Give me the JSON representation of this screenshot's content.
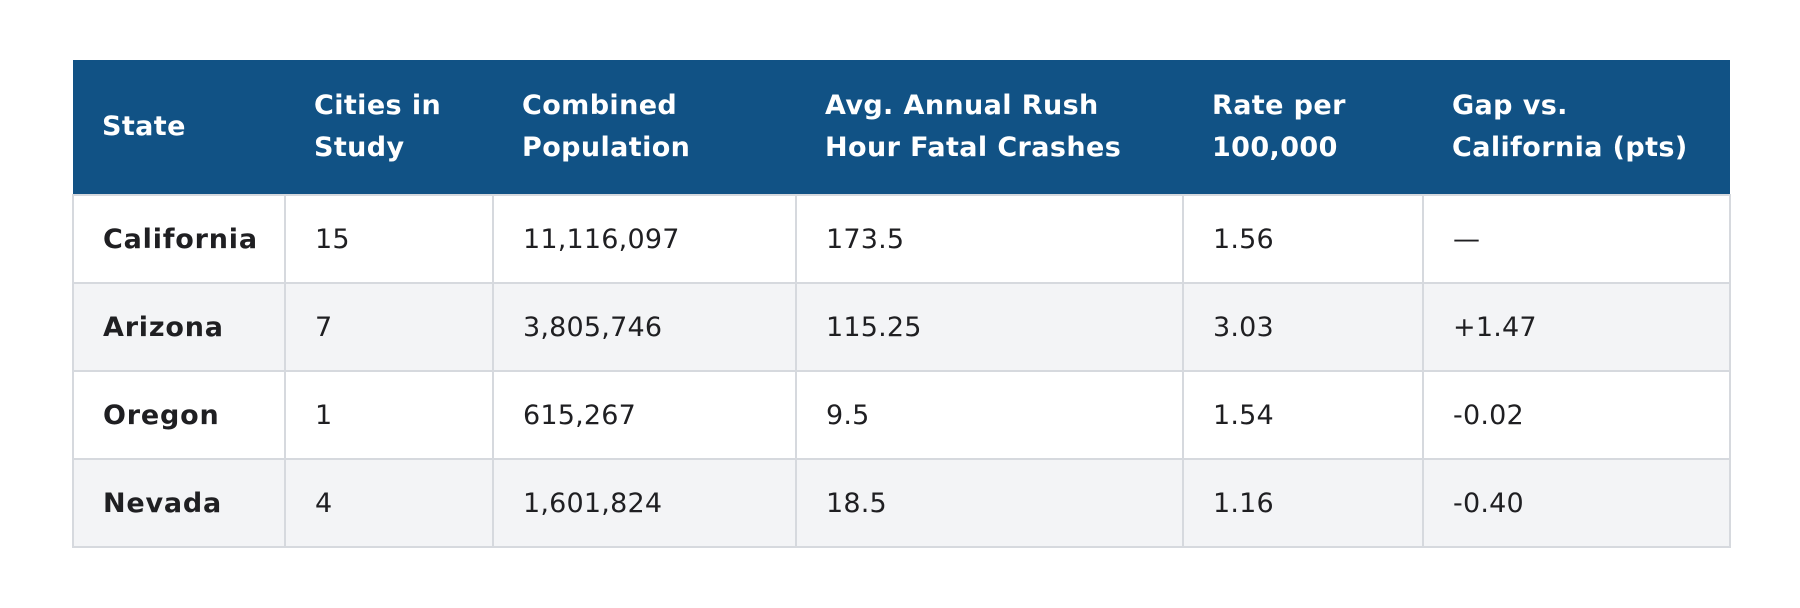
{
  "table": {
    "headers": [
      [
        "State"
      ],
      [
        "Cities in",
        "Study"
      ],
      [
        "Combined",
        "Population"
      ],
      [
        "Avg. Annual Rush",
        "Hour Fatal Crashes"
      ],
      [
        "Rate per",
        "100,000"
      ],
      [
        "Gap vs.",
        "California (pts)"
      ]
    ],
    "rows": [
      {
        "state": "California",
        "cities": "15",
        "population": "11,116,097",
        "crashes": "173.5",
        "rate": "1.56",
        "gap": "—"
      },
      {
        "state": "Arizona",
        "cities": "7",
        "population": "3,805,746",
        "crashes": "115.25",
        "rate": "3.03",
        "gap": "+1.47"
      },
      {
        "state": "Oregon",
        "cities": "1",
        "population": "615,267",
        "crashes": "9.5",
        "rate": "1.54",
        "gap": "-0.02"
      },
      {
        "state": "Nevada",
        "cities": "4",
        "population": "1,601,824",
        "crashes": "18.5",
        "rate": "1.16",
        "gap": "-0.40"
      }
    ]
  },
  "colors": {
    "header_bg": "#115285",
    "header_text": "#ffffff",
    "row_alt_bg": "#f3f4f6",
    "border": "#d6d9de"
  }
}
